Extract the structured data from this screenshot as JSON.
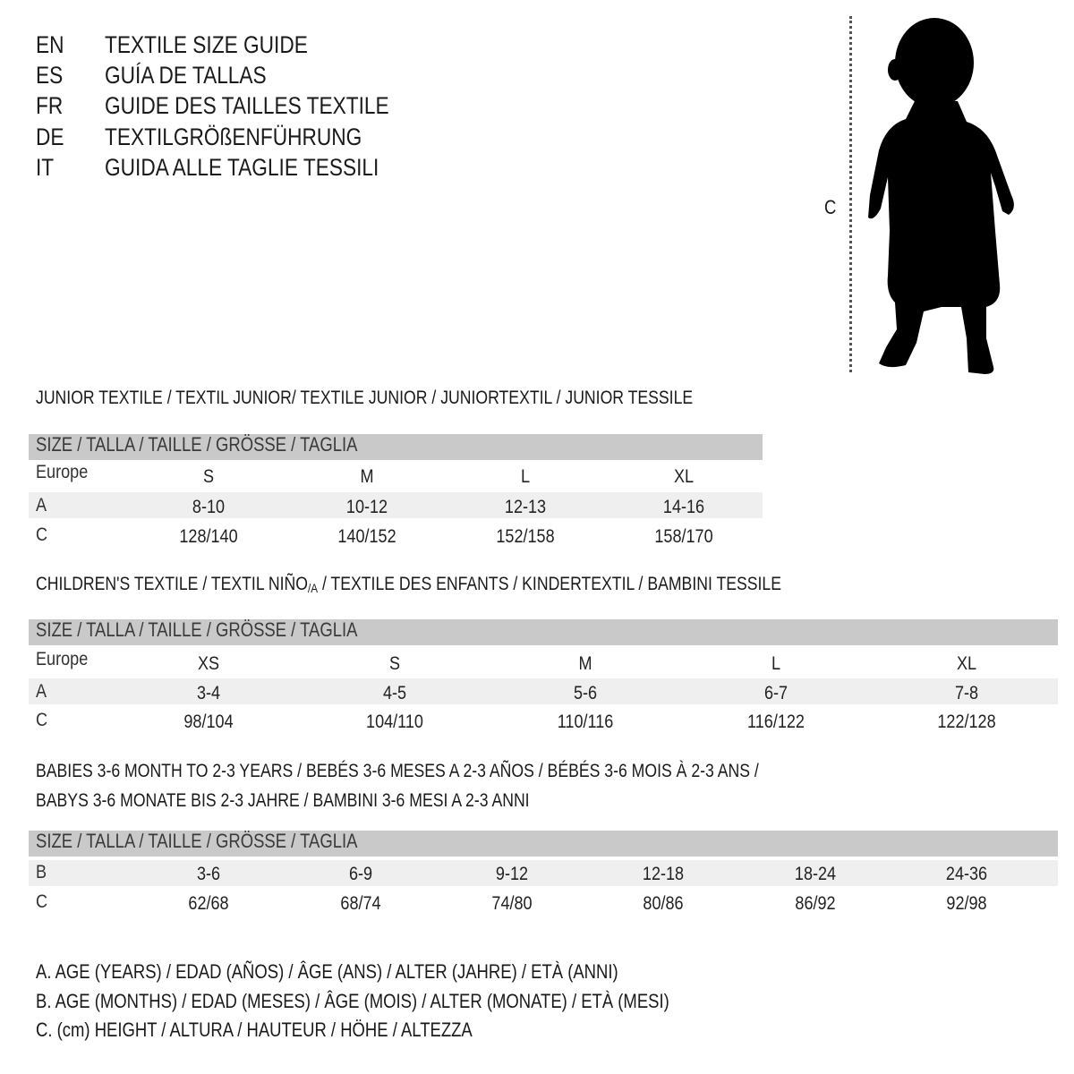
{
  "languages": [
    {
      "code": "EN",
      "text": "TEXTILE SIZE GUIDE"
    },
    {
      "code": "ES",
      "text": "GUÍA DE TALLAS"
    },
    {
      "code": "FR",
      "text": "GUIDE DES TAILLES TEXTILE"
    },
    {
      "code": "DE",
      "text": "TEXTILGRÖßENFÜHRUNG"
    },
    {
      "code": "IT",
      "text": "GUIDA ALLE TAGLIE TESSILI"
    }
  ],
  "figure": {
    "measure_label": "C",
    "icon": "baby-silhouette"
  },
  "colors": {
    "header_band": "#c9c9c9",
    "alt_row": "#efefef"
  },
  "junior": {
    "title": "JUNIOR TEXTILE / TEXTIL JUNIOR/ TEXTILE JUNIOR / JUNIORTEXTIL / JUNIOR TESSILE",
    "header": "SIZE / TALLA / TAILLE / GRÖSSE / TAGLIA",
    "rows": [
      {
        "label": "Europe",
        "values": [
          "S",
          "M",
          "L",
          "XL"
        ]
      },
      {
        "label": "A",
        "values": [
          "8-10",
          "10-12",
          "12-13",
          "14-16"
        ]
      },
      {
        "label": "C",
        "values": [
          "128/140",
          "140/152",
          "152/158",
          "158/170"
        ]
      }
    ]
  },
  "children": {
    "title_pre": "CHILDREN'S TEXTILE / TEXTIL NIÑO",
    "title_sub": "/A",
    "title_post": " / TEXTILE DES ENFANTS / KINDERTEXTIL / BAMBINI TESSILE",
    "header": "SIZE / TALLA / TAILLE / GRÖSSE / TAGLIA",
    "rows": [
      {
        "label": "Europe",
        "values": [
          "XS",
          "S",
          "M",
          "L",
          "XL"
        ]
      },
      {
        "label": "A",
        "values": [
          "3-4",
          "4-5",
          "5-6",
          "6-7",
          "7-8"
        ]
      },
      {
        "label": "C",
        "values": [
          "98/104",
          "104/110",
          "110/116",
          "116/122",
          "122/128"
        ]
      }
    ]
  },
  "babies": {
    "title_line1": "BABIES 3-6 MONTH TO 2-3 YEARS / BEBÉS 3-6 MESES A 2-3 AÑOS / BÉBÉS 3-6 MOIS À 2-3 ANS /",
    "title_line2": "BABYS 3-6 MONATE BIS 2-3 JAHRE / BAMBINI 3-6 MESI A 2-3 ANNI",
    "header": "SIZE / TALLA / TAILLE / GRÖSSE / TAGLIA",
    "rows": [
      {
        "label": "B",
        "values": [
          "3-6",
          "6-9",
          "9-12",
          "12-18",
          "18-24",
          "24-36"
        ]
      },
      {
        "label": "C",
        "values": [
          "62/68",
          "68/74",
          "74/80",
          "80/86",
          "86/92",
          "92/98"
        ]
      }
    ]
  },
  "legend": [
    "A. AGE (YEARS) / EDAD (AÑOS) / ÂGE (ANS) / ALTER (JAHRE) / ETÀ (ANNI)",
    "B. AGE (MONTHS) / EDAD (MESES) / ÂGE (MOIS) / ALTER (MONATE) / ETÀ (MESI)",
    "C. (cm) HEIGHT / ALTURA / HAUTEUR / HÖHE / ALTEZZA"
  ]
}
